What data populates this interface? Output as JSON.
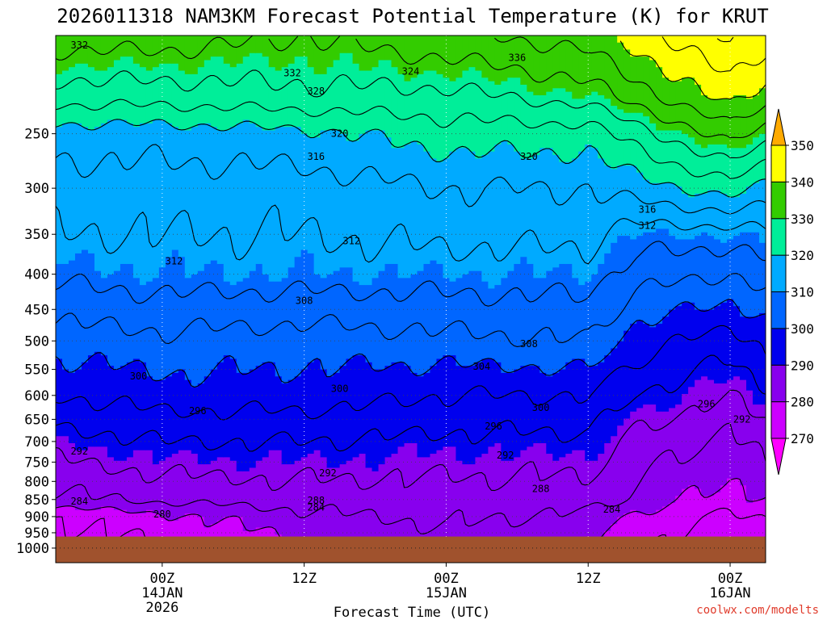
{
  "chart_data": {
    "type": "heatmap",
    "title": "2026011318 NAM3KM Forecast Potential Temperature (K) for KRUT",
    "xlabel": "Forecast Time (UTC)",
    "ylabel": "",
    "x_unit": "hours since 2026-01-13 18Z",
    "xlim": [
      -3,
      57
    ],
    "y_axis": "pressure (hPa), log-pressure vertical",
    "ylim": [
      1050,
      180
    ],
    "x_ticks": [
      {
        "hour": 6,
        "lines": [
          "00Z",
          "14JAN",
          "2026"
        ]
      },
      {
        "hour": 18,
        "lines": [
          "12Z"
        ]
      },
      {
        "hour": 30,
        "lines": [
          "00Z",
          "15JAN"
        ]
      },
      {
        "hour": 42,
        "lines": [
          "12Z"
        ]
      },
      {
        "hour": 54,
        "lines": [
          "00Z",
          "16JAN"
        ]
      }
    ],
    "y_ticks": [
      {
        "value": 250,
        "label": "250"
      },
      {
        "value": 300,
        "label": "300"
      },
      {
        "value": 350,
        "label": "350"
      },
      {
        "value": 400,
        "label": "400"
      },
      {
        "value": 450,
        "label": "450"
      },
      {
        "value": 500,
        "label": "500"
      },
      {
        "value": 550,
        "label": "550"
      },
      {
        "value": 600,
        "label": "600"
      },
      {
        "value": 650,
        "label": "650"
      },
      {
        "value": 700,
        "label": "700"
      },
      {
        "value": 750,
        "label": "750"
      },
      {
        "value": 800,
        "label": "800"
      },
      {
        "value": 850,
        "label": "850"
      },
      {
        "value": 900,
        "label": "900"
      },
      {
        "value": 950,
        "label": "950"
      },
      {
        "value": 1000,
        "label": "1000"
      }
    ],
    "grid_pressures": [
      250,
      300,
      350,
      400,
      450,
      500,
      550,
      600,
      650,
      700,
      750,
      800,
      850,
      900,
      950,
      1000
    ],
    "grid": "dotted",
    "surface_pressure": 962,
    "colorbar": {
      "levels": [
        270,
        280,
        290,
        300,
        310,
        320,
        330,
        340,
        350
      ],
      "labels": [
        "270",
        "280",
        "290",
        "300",
        "310",
        "320",
        "330",
        "340",
        "350"
      ],
      "colors": [
        "#ff00ff",
        "#cc00ff",
        "#8800ee",
        "#0000ee",
        "#0066ff",
        "#00aaff",
        "#00ee99",
        "#33cc00",
        "#ffff00",
        "#ffaa00"
      ],
      "extend": "both"
    },
    "contour_interval_K": 4,
    "profile_hours": [
      -3,
      6,
      18,
      30,
      42,
      46,
      54,
      57
    ],
    "profiles": [
      {
        "hour": -3,
        "theta": [
          {
            "p": 1050,
            "t": 273
          },
          {
            "p": 900,
            "t": 276
          },
          {
            "p": 850,
            "t": 283
          },
          {
            "p": 700,
            "t": 290
          },
          {
            "p": 600,
            "t": 296
          },
          {
            "p": 500,
            "t": 302
          },
          {
            "p": 400,
            "t": 309
          },
          {
            "p": 350,
            "t": 312
          },
          {
            "p": 300,
            "t": 314
          },
          {
            "p": 250,
            "t": 318
          },
          {
            "p": 220,
            "t": 326
          },
          {
            "p": 180,
            "t": 334
          }
        ]
      },
      {
        "hour": 6,
        "theta": [
          {
            "p": 1050,
            "t": 274
          },
          {
            "p": 900,
            "t": 279
          },
          {
            "p": 850,
            "t": 285
          },
          {
            "p": 700,
            "t": 292
          },
          {
            "p": 600,
            "t": 298
          },
          {
            "p": 500,
            "t": 303
          },
          {
            "p": 400,
            "t": 310
          },
          {
            "p": 350,
            "t": 312
          },
          {
            "p": 300,
            "t": 314
          },
          {
            "p": 250,
            "t": 318
          },
          {
            "p": 220,
            "t": 326
          },
          {
            "p": 180,
            "t": 334
          }
        ]
      },
      {
        "hour": 18,
        "theta": [
          {
            "p": 1050,
            "t": 277
          },
          {
            "p": 900,
            "t": 283
          },
          {
            "p": 850,
            "t": 286
          },
          {
            "p": 700,
            "t": 292
          },
          {
            "p": 600,
            "t": 298
          },
          {
            "p": 500,
            "t": 302
          },
          {
            "p": 400,
            "t": 310
          },
          {
            "p": 350,
            "t": 312
          },
          {
            "p": 300,
            "t": 314
          },
          {
            "p": 250,
            "t": 319
          },
          {
            "p": 220,
            "t": 327
          },
          {
            "p": 180,
            "t": 332
          }
        ]
      },
      {
        "hour": 30,
        "theta": [
          {
            "p": 1050,
            "t": 280
          },
          {
            "p": 900,
            "t": 285
          },
          {
            "p": 850,
            "t": 286
          },
          {
            "p": 700,
            "t": 291
          },
          {
            "p": 600,
            "t": 296
          },
          {
            "p": 500,
            "t": 303
          },
          {
            "p": 400,
            "t": 310
          },
          {
            "p": 350,
            "t": 313
          },
          {
            "p": 300,
            "t": 316
          },
          {
            "p": 250,
            "t": 322
          },
          {
            "p": 220,
            "t": 327
          },
          {
            "p": 180,
            "t": 335
          }
        ]
      },
      {
        "hour": 42,
        "theta": [
          {
            "p": 1050,
            "t": 279
          },
          {
            "p": 900,
            "t": 283
          },
          {
            "p": 850,
            "t": 286
          },
          {
            "p": 700,
            "t": 291
          },
          {
            "p": 600,
            "t": 296
          },
          {
            "p": 500,
            "t": 304
          },
          {
            "p": 400,
            "t": 310
          },
          {
            "p": 350,
            "t": 313
          },
          {
            "p": 300,
            "t": 316
          },
          {
            "p": 250,
            "t": 322
          },
          {
            "p": 220,
            "t": 330
          },
          {
            "p": 180,
            "t": 338
          }
        ]
      },
      {
        "hour": 46,
        "theta": [
          {
            "p": 1050,
            "t": 275
          },
          {
            "p": 900,
            "t": 279
          },
          {
            "p": 850,
            "t": 283
          },
          {
            "p": 700,
            "t": 287
          },
          {
            "p": 600,
            "t": 292
          },
          {
            "p": 500,
            "t": 298
          },
          {
            "p": 400,
            "t": 306
          },
          {
            "p": 350,
            "t": 310
          },
          {
            "p": 300,
            "t": 318
          },
          {
            "p": 250,
            "t": 326
          },
          {
            "p": 220,
            "t": 334
          },
          {
            "p": 180,
            "t": 342
          }
        ]
      },
      {
        "hour": 54,
        "theta": [
          {
            "p": 1050,
            "t": 271
          },
          {
            "p": 900,
            "t": 275
          },
          {
            "p": 850,
            "t": 278
          },
          {
            "p": 700,
            "t": 283
          },
          {
            "p": 600,
            "t": 288
          },
          {
            "p": 500,
            "t": 294
          },
          {
            "p": 400,
            "t": 304
          },
          {
            "p": 350,
            "t": 310
          },
          {
            "p": 300,
            "t": 322
          },
          {
            "p": 250,
            "t": 334
          },
          {
            "p": 220,
            "t": 342
          },
          {
            "p": 180,
            "t": 349
          }
        ]
      },
      {
        "hour": 57,
        "theta": [
          {
            "p": 1050,
            "t": 272
          },
          {
            "p": 900,
            "t": 276
          },
          {
            "p": 850,
            "t": 280
          },
          {
            "p": 700,
            "t": 286
          },
          {
            "p": 600,
            "t": 291
          },
          {
            "p": 500,
            "t": 297
          },
          {
            "p": 400,
            "t": 306
          },
          {
            "p": 350,
            "t": 311
          },
          {
            "p": 300,
            "t": 319
          },
          {
            "p": 250,
            "t": 330
          },
          {
            "p": 220,
            "t": 338
          },
          {
            "p": 180,
            "t": 346
          }
        ]
      }
    ],
    "contour_labels": [
      {
        "text": "332",
        "hour": -1,
        "p": 186
      },
      {
        "text": "332",
        "hour": 17,
        "p": 204
      },
      {
        "text": "328",
        "hour": 19,
        "p": 217
      },
      {
        "text": "324",
        "hour": 27,
        "p": 203
      },
      {
        "text": "336",
        "hour": 36,
        "p": 194
      },
      {
        "text": "320",
        "hour": 21,
        "p": 250
      },
      {
        "text": "316",
        "hour": 19,
        "p": 270
      },
      {
        "text": "320",
        "hour": 37,
        "p": 270
      },
      {
        "text": "316",
        "hour": 47,
        "p": 322
      },
      {
        "text": "312",
        "hour": 47,
        "p": 340
      },
      {
        "text": "312",
        "hour": 22,
        "p": 358
      },
      {
        "text": "312",
        "hour": 7,
        "p": 383
      },
      {
        "text": "308",
        "hour": 18,
        "p": 437
      },
      {
        "text": "308",
        "hour": 37,
        "p": 505
      },
      {
        "text": "304",
        "hour": 33,
        "p": 545
      },
      {
        "text": "300",
        "hour": 4,
        "p": 563
      },
      {
        "text": "300",
        "hour": 21,
        "p": 587
      },
      {
        "text": "300",
        "hour": 38,
        "p": 625
      },
      {
        "text": "296",
        "hour": 52,
        "p": 618
      },
      {
        "text": "296",
        "hour": 9,
        "p": 632
      },
      {
        "text": "296",
        "hour": 34,
        "p": 665
      },
      {
        "text": "292",
        "hour": 55,
        "p": 650
      },
      {
        "text": "292",
        "hour": -1,
        "p": 723
      },
      {
        "text": "292",
        "hour": 35,
        "p": 733
      },
      {
        "text": "292",
        "hour": 20,
        "p": 778
      },
      {
        "text": "288",
        "hour": 38,
        "p": 820
      },
      {
        "text": "288",
        "hour": 19,
        "p": 853
      },
      {
        "text": "284",
        "hour": 19,
        "p": 873
      },
      {
        "text": "284",
        "hour": -1,
        "p": 855
      },
      {
        "text": "284",
        "hour": 44,
        "p": 878
      },
      {
        "text": "280",
        "hour": 6,
        "p": 893
      }
    ],
    "watermark": "coolwx.com/modelts"
  }
}
